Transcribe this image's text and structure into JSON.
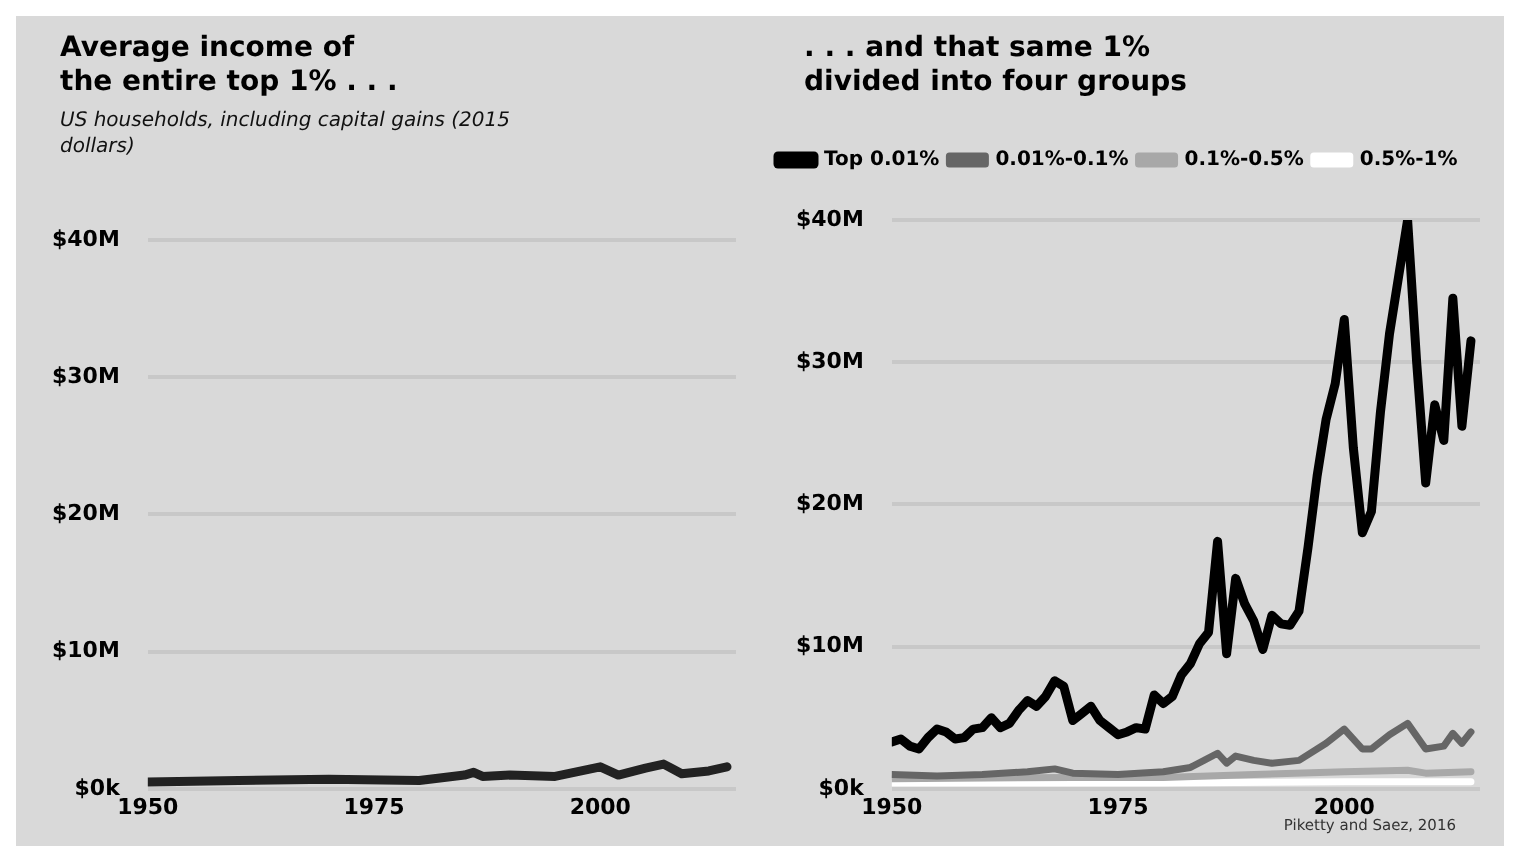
{
  "chart_data": [
    {
      "type": "line",
      "title": "Average income of the entire top 1% . . .",
      "subtitle": "US households, including capital gains (2015 dollars)",
      "xlim": [
        1950,
        2015
      ],
      "xticks": [
        1950,
        1975,
        2000
      ],
      "ylim": [
        0,
        40
      ],
      "yticks": [
        {
          "value": 0,
          "label": "$0k"
        },
        {
          "value": 10,
          "label": "$10M"
        },
        {
          "value": 20,
          "label": "$20M"
        },
        {
          "value": 30,
          "label": "$30M"
        },
        {
          "value": 40,
          "label": "$40M"
        }
      ],
      "grid": "y",
      "legend": false,
      "marker": "none",
      "line_style": "solid",
      "series": [
        {
          "color": "#222222",
          "x": [
            1950,
            1960,
            1970,
            1980,
            1985,
            1986,
            1987,
            1990,
            1995,
            2000,
            2002,
            2005,
            2007,
            2009,
            2012,
            2014
          ],
          "values": [
            0.5,
            0.6,
            0.7,
            0.6,
            1.0,
            1.2,
            0.9,
            1.0,
            0.9,
            1.6,
            1.0,
            1.5,
            1.8,
            1.1,
            1.3,
            1.6
          ]
        }
      ]
    },
    {
      "type": "line",
      "title": ". . . and that same 1% divided into four groups",
      "xlim": [
        1950,
        2015
      ],
      "xticks": [
        1950,
        1975,
        2000
      ],
      "ylim": [
        0,
        40
      ],
      "yticks": [
        {
          "value": 0,
          "label": "$0k"
        },
        {
          "value": 10,
          "label": "$10M"
        },
        {
          "value": 20,
          "label": "$20M"
        },
        {
          "value": 30,
          "label": "$30M"
        },
        {
          "value": 40,
          "label": "$40M"
        }
      ],
      "grid": "y",
      "legend": "top left",
      "marker": "none",
      "line_style": "solid",
      "annotations": [
        "Piketty and Saez, 2016"
      ],
      "series": [
        {
          "name": "Top 0.01%",
          "color": "#000000",
          "x": [
            1950,
            1951,
            1952,
            1953,
            1954,
            1955,
            1956,
            1957,
            1958,
            1959,
            1960,
            1961,
            1962,
            1963,
            1964,
            1965,
            1966,
            1967,
            1968,
            1969,
            1970,
            1971,
            1972,
            1973,
            1974,
            1975,
            1976,
            1977,
            1978,
            1979,
            1980,
            1981,
            1982,
            1983,
            1984,
            1985,
            1986,
            1987,
            1988,
            1989,
            1990,
            1991,
            1992,
            1993,
            1994,
            1995,
            1996,
            1997,
            1998,
            1999,
            2000,
            2001,
            2002,
            2003,
            2004,
            2005,
            2006,
            2007,
            2008,
            2009,
            2010,
            2011,
            2012,
            2013,
            2014
          ],
          "values": [
            3.3,
            3.5,
            3.0,
            2.8,
            3.6,
            4.2,
            4.0,
            3.5,
            3.6,
            4.2,
            4.3,
            5.0,
            4.3,
            4.6,
            5.5,
            6.2,
            5.8,
            6.5,
            7.6,
            7.2,
            4.8,
            5.3,
            5.8,
            4.8,
            4.3,
            3.8,
            4.0,
            4.3,
            4.2,
            6.6,
            6.0,
            6.5,
            8.0,
            8.8,
            10.2,
            11.0,
            17.4,
            9.5,
            14.8,
            13.0,
            11.8,
            9.8,
            12.2,
            11.6,
            11.5,
            12.5,
            17.0,
            22.0,
            26.0,
            28.5,
            33.0,
            24.0,
            18.0,
            19.5,
            26.5,
            32.0,
            36.0,
            40.0,
            30.0,
            21.5,
            27.0,
            24.5,
            34.5,
            25.5,
            31.5
          ]
        },
        {
          "name": "0.01%-0.1%",
          "color": "#666666",
          "x": [
            1950,
            1955,
            1960,
            1965,
            1968,
            1970,
            1975,
            1980,
            1983,
            1986,
            1987,
            1988,
            1990,
            1992,
            1995,
            1998,
            2000,
            2002,
            2003,
            2005,
            2007,
            2009,
            2011,
            2012,
            2013,
            2014
          ],
          "values": [
            1.0,
            0.9,
            1.0,
            1.2,
            1.4,
            1.1,
            1.0,
            1.2,
            1.5,
            2.5,
            1.8,
            2.3,
            2.0,
            1.8,
            2.0,
            3.2,
            4.2,
            2.8,
            2.8,
            3.8,
            4.6,
            2.8,
            3.0,
            3.9,
            3.2,
            4.0
          ]
        },
        {
          "name": "0.1%-0.5%",
          "color": "#a8a8a8",
          "x": [
            1950,
            1970,
            1980,
            1990,
            2000,
            2007,
            2009,
            2014
          ],
          "values": [
            0.7,
            0.8,
            0.8,
            1.0,
            1.2,
            1.3,
            1.1,
            1.2
          ]
        },
        {
          "name": "0.5%-1%",
          "color": "#ffffff",
          "x": [
            1950,
            1980,
            2000,
            2014
          ],
          "values": [
            0.4,
            0.4,
            0.5,
            0.5
          ]
        }
      ]
    }
  ]
}
